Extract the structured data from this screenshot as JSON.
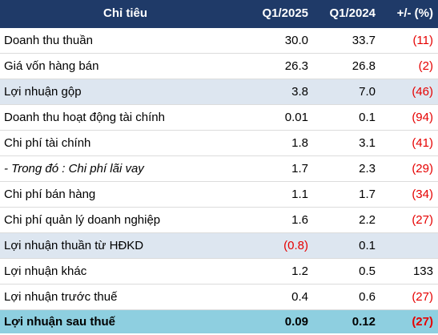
{
  "table": {
    "headers": {
      "name": "Chỉ tiêu",
      "q1_2025": "Q1/2025",
      "q1_2024": "Q1/2024",
      "change": "+/- (%)"
    },
    "rows": [
      {
        "name": "Doanh thu thuần",
        "q1_2025": "30.0",
        "q1_2024": "33.7",
        "change": "(11)"
      },
      {
        "name": "Giá vốn hàng bán",
        "q1_2025": "26.3",
        "q1_2024": "26.8",
        "change": "(2)"
      },
      {
        "name": "Lợi nhuận gộp",
        "q1_2025": "3.8",
        "q1_2024": "7.0",
        "change": "(46)"
      },
      {
        "name": "Doanh thu hoạt động tài chính",
        "q1_2025": "0.01",
        "q1_2024": "0.1",
        "change": "(94)"
      },
      {
        "name": "Chi phí tài chính",
        "q1_2025": "1.8",
        "q1_2024": "3.1",
        "change": "(41)"
      },
      {
        "name": "- Trong đó : Chi phí lãi vay",
        "q1_2025": "1.7",
        "q1_2024": "2.3",
        "change": "(29)"
      },
      {
        "name": "Chi phí bán hàng",
        "q1_2025": "1.1",
        "q1_2024": "1.7",
        "change": "(34)"
      },
      {
        "name": "Chi phí quản lý doanh nghiệp",
        "q1_2025": "1.6",
        "q1_2024": "2.2",
        "change": "(27)"
      },
      {
        "name": "Lợi nhuận thuần từ HĐKD",
        "q1_2025": "(0.8)",
        "q1_2024": "0.1",
        "change": ""
      },
      {
        "name": "Lợi nhuận khác",
        "q1_2025": "1.2",
        "q1_2024": "0.5",
        "change": "133"
      },
      {
        "name": "Lợi nhuận trước thuế",
        "q1_2025": "0.4",
        "q1_2024": "0.6",
        "change": "(27)"
      },
      {
        "name": "Lợi nhuận sau thuế",
        "q1_2025": "0.09",
        "q1_2024": "0.12",
        "change": "(27)"
      }
    ]
  },
  "colors": {
    "header_bg": "#1f3a68",
    "shaded_row_bg": "#dde6f0",
    "total_row_bg": "#8ecfe0",
    "negative_text": "#e60000"
  }
}
